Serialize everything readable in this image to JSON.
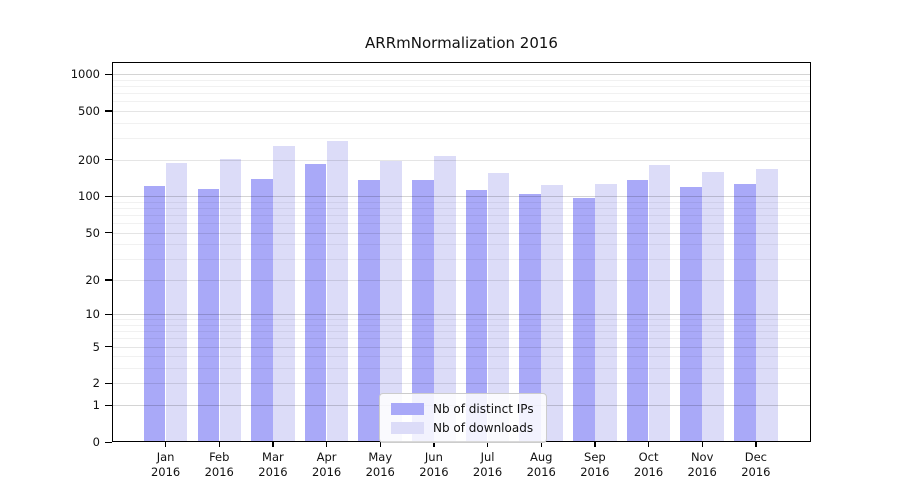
{
  "title": "ARRmNormalization 2016",
  "legend": {
    "items": [
      {
        "label": "Nb of distinct IPs",
        "color": "#a9a9f8"
      },
      {
        "label": "Nb of downloads",
        "color": "#dcdcf8"
      }
    ]
  },
  "chart_data": {
    "type": "bar",
    "title": "ARRmNormalization 2016",
    "categories": [
      "Jan 2016",
      "Feb 2016",
      "Mar 2016",
      "Apr 2016",
      "May 2016",
      "Jun 2016",
      "Jul 2016",
      "Aug 2016",
      "Sep 2016",
      "Oct 2016",
      "Nov 2016",
      "Dec 2016"
    ],
    "series": [
      {
        "name": "Nb of distinct IPs",
        "color": "#a9a9f8",
        "values": [
          121,
          114,
          138,
          185,
          137,
          137,
          112,
          105,
          96,
          135,
          119,
          127
        ]
      },
      {
        "name": "Nb of downloads",
        "color": "#dcdcf8",
        "values": [
          188,
          203,
          257,
          283,
          194,
          213,
          156,
          124,
          126,
          180,
          158,
          166
        ]
      }
    ],
    "xlabel": "",
    "ylabel": "",
    "y_scale": "log10(value+1)",
    "y_ticks": [
      0,
      1,
      2,
      5,
      10,
      20,
      50,
      100,
      200,
      500,
      1000
    ],
    "ylim": [
      0,
      1250
    ],
    "grid": true,
    "legend_position": "lower center"
  }
}
